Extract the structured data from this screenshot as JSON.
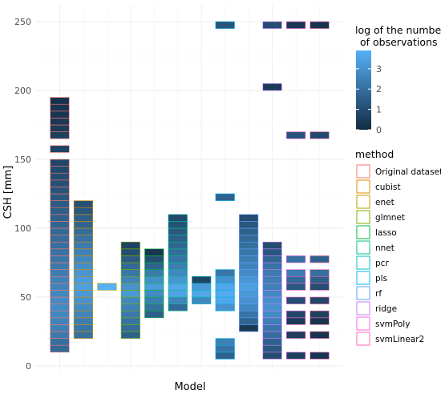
{
  "chart_data": {
    "type": "heatmap",
    "title": "",
    "xlabel": "Model",
    "ylabel": "CSH [mm]",
    "ylim": [
      0,
      250
    ],
    "yticks": [
      0,
      50,
      100,
      150,
      200,
      250
    ],
    "bin_width_mm": 5,
    "grid": true,
    "legend_position": "right",
    "colorbar": {
      "title_lines": [
        "log of the number",
        "of observations"
      ],
      "ticks": [
        0,
        1,
        2,
        3
      ],
      "range": [
        0,
        3.9
      ],
      "colors": [
        "#132B43",
        "#56B1F7"
      ]
    },
    "method_legend": {
      "title": "method",
      "entries": [
        {
          "name": "Original dataset",
          "color": "#F8766D"
        },
        {
          "name": "cubist",
          "color": "#DE8C00"
        },
        {
          "name": "enet",
          "color": "#B79F00"
        },
        {
          "name": "glmnet",
          "color": "#7CAE00"
        },
        {
          "name": "lasso",
          "color": "#00BA38"
        },
        {
          "name": "nnet",
          "color": "#00C08B"
        },
        {
          "name": "pcr",
          "color": "#00BFC4"
        },
        {
          "name": "pls",
          "color": "#00B4F0"
        },
        {
          "name": "rf",
          "color": "#619CFF"
        },
        {
          "name": "ridge",
          "color": "#C77CFF"
        },
        {
          "name": "svmPoly",
          "color": "#F564E3"
        },
        {
          "name": "svmLinear2",
          "color": "#FF64B0"
        }
      ]
    },
    "series": [
      {
        "name": "Original dataset",
        "ymin": 10,
        "ymax": 195,
        "gaps": [
          [
            150,
            155
          ],
          [
            160,
            165
          ]
        ],
        "log_counts": [
          1.8,
          2.0,
          2.3,
          2.5,
          2.6,
          2.7,
          2.8,
          2.8,
          2.7,
          2.6,
          2.5,
          2.4,
          2.3,
          2.2,
          2.1,
          2.0,
          1.9,
          1.8,
          1.7,
          1.6,
          1.5,
          1.4,
          1.3,
          1.2,
          1.1,
          1.0,
          0.9,
          0.8,
          0.7,
          0.6,
          0.5,
          0.4,
          0.3,
          0.3,
          0.2,
          0.2,
          0.1
        ]
      },
      {
        "name": "cubist",
        "ymin": 20,
        "ymax": 120,
        "gaps": [],
        "log_counts": [
          2.0,
          2.2,
          2.4,
          2.6,
          2.8,
          3.0,
          3.2,
          3.4,
          3.3,
          3.1,
          2.9,
          2.7,
          2.5,
          2.3,
          2.1,
          1.9,
          1.7,
          1.5,
          1.3,
          1.1
        ]
      },
      {
        "name": "enet",
        "ymin": 55,
        "ymax": 60,
        "gaps": [],
        "log_counts": [
          3.9
        ]
      },
      {
        "name": "glmnet",
        "ymin": 20,
        "ymax": 90,
        "gaps": [],
        "log_counts": [
          1.6,
          1.9,
          2.1,
          2.3,
          2.5,
          2.7,
          3.2,
          3.0,
          2.6,
          2.2,
          1.8,
          1.4,
          1.0,
          0.7
        ]
      },
      {
        "name": "lasso",
        "ymin": 35,
        "ymax": 85,
        "gaps": [],
        "log_counts": [
          1.5,
          2.0,
          2.4,
          2.8,
          3.3,
          2.9,
          2.3,
          1.6,
          1.0,
          0.3
        ]
      },
      {
        "name": "nnet",
        "ymin": 40,
        "ymax": 110,
        "gaps": [],
        "log_counts": [
          1.8,
          2.6,
          3.5,
          3.6,
          3.1,
          2.7,
          2.4,
          2.1,
          1.9,
          1.7,
          1.5,
          1.3,
          1.1,
          0.9
        ]
      },
      {
        "name": "pcr",
        "ymin": 45,
        "ymax": 65,
        "gaps": [],
        "log_counts": [
          2.7,
          3.6,
          3.2,
          0.7
        ]
      },
      {
        "name": "pls",
        "ymin": 5,
        "ymax": 250,
        "gaps": [
          [
            20,
            40
          ],
          [
            70,
            120
          ],
          [
            125,
            245
          ]
        ],
        "log_counts": [
          1.6,
          2.1,
          2.5,
          3.0,
          3.6,
          3.7,
          3.6,
          3.0,
          2.2,
          1.6,
          1.2,
          0.6,
          0.2,
          0.1,
          0.0,
          0.0,
          0.0,
          0.0,
          0.0,
          0.0,
          0.0,
          0.0,
          0.0,
          0.0,
          0.0,
          0.0,
          0.0,
          0.0,
          0.0,
          0.0,
          0.0,
          0.0,
          0.0,
          0.0,
          0.0,
          0.0,
          0.0,
          0.0,
          0.0,
          0.0,
          0.0,
          0.0,
          0.0,
          0.0,
          0.0,
          0.0,
          0.0,
          0.0,
          0.0
        ]
      },
      {
        "name": "rf",
        "ymin": 25,
        "ymax": 110,
        "gaps": [],
        "log_counts": [
          0.4,
          1.7,
          2.1,
          2.7,
          3.0,
          3.2,
          3.4,
          3.1,
          2.8,
          2.6,
          2.4,
          2.2,
          2.0,
          1.8,
          1.6,
          1.3,
          1.0
        ]
      },
      {
        "name": "ridge",
        "ymin": 5,
        "ymax": 250,
        "gaps": [
          [
            90,
            200
          ],
          [
            205,
            245
          ]
        ],
        "log_counts": [
          1.0,
          1.3,
          1.6,
          1.9,
          2.2,
          2.5,
          2.8,
          3.0,
          2.9,
          2.7,
          2.5,
          2.4,
          2.3,
          2.1,
          1.7,
          1.3,
          1.0,
          0.4
        ]
      },
      {
        "name": "svmPoly",
        "ymin": 5,
        "ymax": 250,
        "gaps": [
          [
            10,
            20
          ],
          [
            25,
            30
          ],
          [
            40,
            45
          ],
          [
            50,
            55
          ],
          [
            70,
            75
          ],
          [
            80,
            165
          ],
          [
            170,
            245
          ]
        ],
        "log_counts": [
          0.6,
          0.5,
          0.4,
          0.8,
          1.0,
          1.3,
          1.8,
          2.4,
          2.0,
          1.2,
          0.3,
          0.2,
          0.2
        ]
      },
      {
        "name": "svmLinear2",
        "ymin": 5,
        "ymax": 250,
        "gaps": [
          [
            10,
            20
          ],
          [
            25,
            30
          ],
          [
            40,
            45
          ],
          [
            50,
            55
          ],
          [
            70,
            75
          ],
          [
            80,
            165
          ],
          [
            170,
            245
          ]
        ],
        "log_counts": [
          0.3,
          0.2,
          0.2,
          0.6,
          0.8,
          1.0,
          1.5,
          2.0,
          1.6,
          0.9,
          0.2,
          0.1,
          0.1
        ]
      }
    ]
  }
}
